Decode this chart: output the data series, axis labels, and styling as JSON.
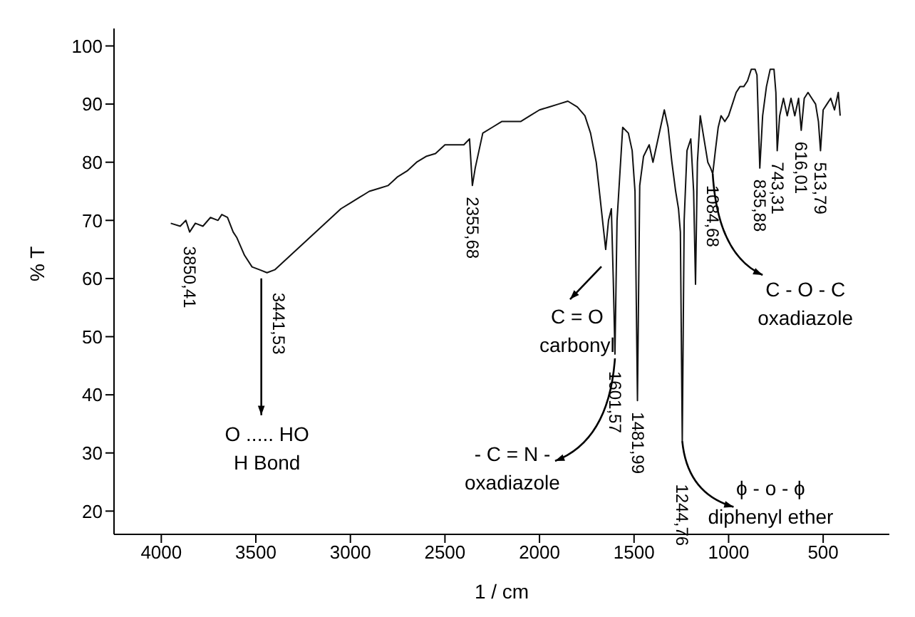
{
  "chart_data": {
    "type": "line",
    "xlabel": "1 / cm",
    "ylabel": "% T",
    "xlim": [
      4250,
      150
    ],
    "xticks": [
      4000,
      3500,
      3000,
      2500,
      2000,
      1500,
      1000,
      500
    ],
    "ylim": [
      16,
      103
    ],
    "yticks": [
      20,
      30,
      40,
      50,
      60,
      70,
      80,
      90,
      100
    ],
    "x": [
      3950,
      3900,
      3870,
      3850,
      3820,
      3780,
      3740,
      3700,
      3680,
      3650,
      3620,
      3600,
      3560,
      3520,
      3480,
      3441,
      3400,
      3350,
      3300,
      3250,
      3200,
      3150,
      3100,
      3050,
      3000,
      2950,
      2900,
      2850,
      2800,
      2750,
      2700,
      2650,
      2600,
      2550,
      2500,
      2450,
      2400,
      2370,
      2355,
      2340,
      2320,
      2300,
      2250,
      2200,
      2150,
      2100,
      2050,
      2000,
      1950,
      1900,
      1850,
      1800,
      1760,
      1730,
      1700,
      1680,
      1660,
      1650,
      1635,
      1620,
      1610,
      1601,
      1590,
      1560,
      1530,
      1510,
      1495,
      1482,
      1470,
      1450,
      1420,
      1400,
      1380,
      1360,
      1340,
      1320,
      1300,
      1280,
      1265,
      1255,
      1245,
      1235,
      1220,
      1200,
      1185,
      1175,
      1165,
      1150,
      1130,
      1110,
      1095,
      1084,
      1070,
      1055,
      1040,
      1020,
      1000,
      980,
      960,
      940,
      920,
      900,
      880,
      860,
      850,
      835,
      820,
      800,
      780,
      760,
      750,
      743,
      730,
      710,
      690,
      670,
      650,
      630,
      616,
      600,
      580,
      560,
      540,
      525,
      514,
      500,
      480,
      460,
      440,
      420,
      410
    ],
    "series": [
      {
        "color": "#111111",
        "values": [
          69.5,
          69,
          70,
          68,
          69.5,
          69,
          70.5,
          70,
          71,
          70.5,
          68,
          67,
          64,
          62,
          61.5,
          61,
          61.5,
          63,
          64.5,
          66,
          67.5,
          69,
          70.5,
          72,
          73,
          74,
          75,
          75.5,
          76,
          77.5,
          78.5,
          80,
          81,
          81.5,
          83,
          83,
          83,
          84,
          76,
          79,
          82,
          85,
          86,
          87,
          87,
          87,
          88,
          89,
          89.5,
          90,
          90.5,
          89.5,
          88,
          85,
          80,
          74,
          68,
          65,
          70,
          72,
          60,
          47,
          70,
          86,
          85,
          82,
          75,
          39,
          76,
          81,
          83,
          80,
          83,
          86,
          89,
          86,
          80,
          75,
          72,
          68,
          32,
          70,
          82,
          84,
          75,
          59,
          80,
          88,
          84,
          80,
          79,
          78,
          82,
          86,
          88,
          87,
          88,
          90,
          92,
          93,
          93,
          94,
          96,
          96,
          95,
          79,
          88,
          93,
          96,
          96,
          92,
          82,
          88,
          91,
          88,
          91,
          88,
          91,
          85.5,
          91,
          92,
          91,
          90,
          87,
          82,
          89,
          90,
          91,
          89,
          92,
          88
        ]
      }
    ],
    "annotations": [
      {
        "text": "3850,41",
        "x": 3850,
        "y": 68
      },
      {
        "text": "3441,53",
        "x": 3441,
        "y": 61
      },
      {
        "text": "2355,68",
        "x": 2355,
        "y": 76
      },
      {
        "text": "1601,57",
        "x": 1601,
        "y": 47
      },
      {
        "text": "1481,99",
        "x": 1482,
        "y": 39
      },
      {
        "text": "1244,76",
        "x": 1245,
        "y": 32
      },
      {
        "text": "1084,68",
        "x": 1084,
        "y": 78
      },
      {
        "text": "835,88",
        "x": 835,
        "y": 79
      },
      {
        "text": "743,31",
        "x": 743,
        "y": 82
      },
      {
        "text": "616,01",
        "x": 616,
        "y": 85.5
      },
      {
        "text": "513,79",
        "x": 514,
        "y": 82
      },
      {
        "text": "O ..... HO\nH Bond",
        "x": 3441,
        "y": 61
      },
      {
        "text": "C = O\ncarbonyl",
        "x": 1650,
        "y": 65
      },
      {
        "text": "- C = N -\noxadiazole",
        "x": 1601,
        "y": 47
      },
      {
        "text": "ϕ - o - ϕ\ndiphenyl ether",
        "x": 1245,
        "y": 32
      },
      {
        "text": "C - O - C\noxadiazole",
        "x": 1084,
        "y": 78
      }
    ]
  }
}
